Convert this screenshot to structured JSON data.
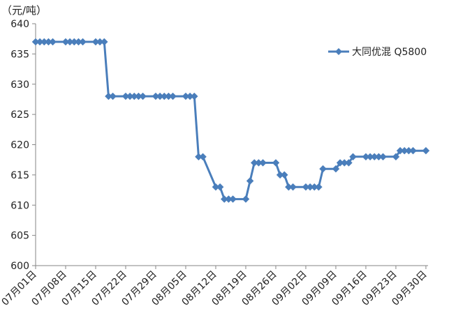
{
  "chart_data": {
    "type": "line",
    "unit_label": "（元/吨）",
    "ylim": [
      600,
      640
    ],
    "y_ticks": [
      "600",
      "605",
      "610",
      "615",
      "620",
      "625",
      "630",
      "635",
      "640"
    ],
    "x_tick_labels": [
      "07月01日",
      "07月08日",
      "07月15日",
      "07月22日",
      "07月29日",
      "08月05日",
      "08月12日",
      "08月19日",
      "08月26日",
      "09月02日",
      "09月09日",
      "09月16日",
      "09月23日",
      "09月30日"
    ],
    "legend_position": "right",
    "grid": false,
    "series": [
      {
        "name": "大同优混 Q5800",
        "color": "#4a7ebb",
        "x": [
          "07-01",
          "07-02",
          "07-03",
          "07-04",
          "07-05",
          "07-08",
          "07-09",
          "07-10",
          "07-11",
          "07-12",
          "07-15",
          "07-16",
          "07-17",
          "07-18",
          "07-19",
          "07-22",
          "07-23",
          "07-24",
          "07-25",
          "07-26",
          "07-29",
          "07-30",
          "07-31",
          "08-01",
          "08-02",
          "08-05",
          "08-06",
          "08-07",
          "08-08",
          "08-09",
          "08-12",
          "08-13",
          "08-14",
          "08-15",
          "08-16",
          "08-19",
          "08-20",
          "08-21",
          "08-22",
          "08-23",
          "08-26",
          "08-27",
          "08-28",
          "08-29",
          "08-30",
          "09-02",
          "09-03",
          "09-04",
          "09-05",
          "09-06",
          "09-09",
          "09-10",
          "09-11",
          "09-12",
          "09-13",
          "09-16",
          "09-17",
          "09-18",
          "09-19",
          "09-20",
          "09-23",
          "09-24",
          "09-25",
          "09-26",
          "09-27",
          "09-30"
        ],
        "values": [
          637,
          637,
          637,
          637,
          637,
          637,
          637,
          637,
          637,
          637,
          637,
          637,
          637,
          628,
          628,
          628,
          628,
          628,
          628,
          628,
          628,
          628,
          628,
          628,
          628,
          628,
          628,
          628,
          618,
          618,
          613,
          613,
          611,
          611,
          611,
          611,
          614,
          617,
          617,
          617,
          617,
          615,
          615,
          613,
          613,
          613,
          613,
          613,
          613,
          616,
          616,
          617,
          617,
          617,
          618,
          618,
          618,
          618,
          618,
          618,
          618,
          619,
          619,
          619,
          619,
          619
        ]
      }
    ]
  }
}
